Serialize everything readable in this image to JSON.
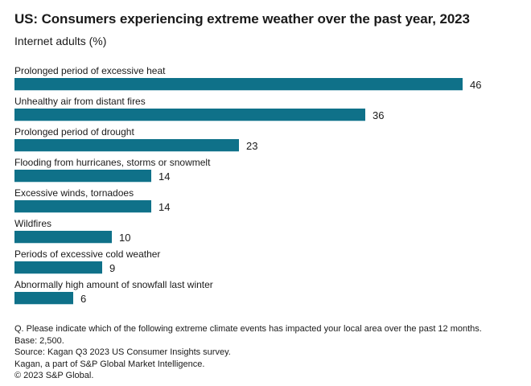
{
  "header": {
    "title": "US: Consumers experiencing extreme weather over the past year, 2023",
    "subtitle": "Internet adults (%)"
  },
  "chart_data": {
    "type": "bar",
    "orientation": "horizontal",
    "title": "US: Consumers experiencing extreme weather over the past year, 2023",
    "subtitle": "Internet adults (%)",
    "xlabel": "",
    "ylabel": "",
    "xlim": [
      0,
      50
    ],
    "grid": false,
    "legend": false,
    "data_labels": true,
    "bar_color": "#0f7189",
    "categories": [
      "Prolonged period of excessive heat",
      "Unhealthy air from distant fires",
      "Prolonged period of drought",
      "Flooding from hurricanes, storms or snowmelt",
      "Excessive winds, tornadoes",
      "Wildfires",
      "Periods of excessive cold weather",
      "Abnormally high amount of snowfall last winter"
    ],
    "values": [
      46,
      36,
      23,
      14,
      14,
      10,
      9,
      6
    ]
  },
  "footer": {
    "lines": [
      "Q. Please indicate which of the following extreme climate events has impacted your local area over the past 12 months.",
      "Base: 2,500.",
      "Source: Kagan Q3 2023 US Consumer Insights survey.",
      "Kagan, a part of S&P Global Market Intelligence.",
      "© 2023 S&P Global."
    ]
  },
  "colors": {
    "bar": "#0f7189",
    "text": "#1a1a1a",
    "background": "#ffffff"
  }
}
